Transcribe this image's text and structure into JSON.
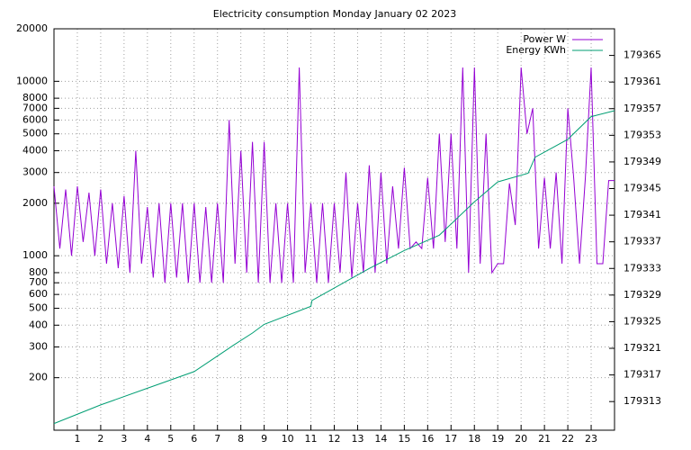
{
  "chart_data": {
    "type": "line",
    "title": "Electricity consumption Monday January 02 2023",
    "xlim": [
      0,
      24
    ],
    "xticks": [
      1,
      2,
      3,
      4,
      5,
      6,
      7,
      8,
      9,
      10,
      11,
      12,
      13,
      14,
      15,
      16,
      17,
      18,
      19,
      20,
      21,
      22,
      23
    ],
    "ylim": [
      100,
      20000
    ],
    "log_y": true,
    "yticks": [
      200,
      300,
      400,
      500,
      600,
      700,
      800,
      1000,
      2000,
      3000,
      4000,
      5000,
      6000,
      7000,
      8000,
      10000,
      20000
    ],
    "y2lim": [
      179308.7,
      179369
    ],
    "y2ticks": [
      179313,
      179317,
      179321,
      179325,
      179329,
      179333,
      179337,
      179341,
      179345,
      179349,
      179353,
      179357,
      179361,
      179365
    ],
    "grid": true,
    "legend": "top-right",
    "series": [
      {
        "name": "Power W",
        "color": "#9400d3",
        "x": [
          0,
          0.25,
          0.5,
          0.75,
          1,
          1.25,
          1.5,
          1.75,
          2,
          2.25,
          2.5,
          2.75,
          3,
          3.25,
          3.5,
          3.75,
          4,
          4.25,
          4.5,
          4.75,
          5,
          5.25,
          5.5,
          5.75,
          6,
          6.25,
          6.5,
          6.75,
          7,
          7.25,
          7.5,
          7.75,
          8,
          8.25,
          8.5,
          8.75,
          9,
          9.25,
          9.5,
          9.75,
          10,
          10.25,
          10.5,
          10.75,
          11,
          11.25,
          11.5,
          11.75,
          12,
          12.25,
          12.5,
          12.75,
          13,
          13.25,
          13.5,
          13.75,
          14,
          14.25,
          14.5,
          14.75,
          15,
          15.25,
          15.5,
          15.75,
          16,
          16.25,
          16.5,
          16.75,
          17,
          17.25,
          17.5,
          17.75,
          18,
          18.25,
          18.5,
          18.75,
          19,
          19.25,
          19.5,
          19.75,
          20,
          20.25,
          20.5,
          20.75,
          21,
          21.25,
          21.5,
          21.75,
          22,
          22.25,
          22.5,
          22.75,
          23,
          23.25,
          23.5,
          23.75,
          24
        ],
        "values": [
          2500,
          1100,
          2400,
          1000,
          2500,
          1200,
          2300,
          1000,
          2400,
          900,
          2000,
          850,
          2200,
          800,
          4000,
          900,
          1900,
          750,
          2000,
          700,
          2000,
          750,
          2000,
          700,
          2000,
          700,
          1900,
          700,
          2000,
          700,
          6000,
          900,
          4000,
          800,
          4500,
          700,
          4500,
          700,
          2000,
          700,
          2000,
          700,
          12000,
          800,
          2000,
          700,
          2000,
          700,
          2000,
          800,
          3000,
          750,
          2000,
          800,
          3300,
          800,
          3000,
          900,
          2500,
          1100,
          3200,
          1100,
          1200,
          1100,
          2800,
          1100,
          5000,
          1200,
          5000,
          1100,
          12000,
          800,
          12000,
          900,
          5000,
          800,
          900,
          900,
          2600,
          1500,
          12000,
          5000,
          7000,
          1100,
          2800,
          1100,
          3000,
          900,
          7000,
          2800,
          900,
          2800,
          12000,
          900,
          900,
          2700,
          2700
        ]
      },
      {
        "name": "Energy KWh",
        "color": "#009e73",
        "axis": "y2",
        "x": [
          0,
          2,
          4,
          6,
          7.7,
          8.5,
          9,
          11,
          11.05,
          13.5,
          15,
          16.5,
          18,
          19,
          20.3,
          20.6,
          22,
          23,
          24
        ],
        "values": [
          179309.7,
          179312.5,
          179315,
          179317.5,
          179321.5,
          179323.3,
          179324.6,
          179327.3,
          179328.2,
          179333,
          179335.7,
          179338,
          179343,
          179346,
          179347.3,
          179349.7,
          179352.4,
          179355.8,
          179356.7
        ]
      }
    ]
  }
}
